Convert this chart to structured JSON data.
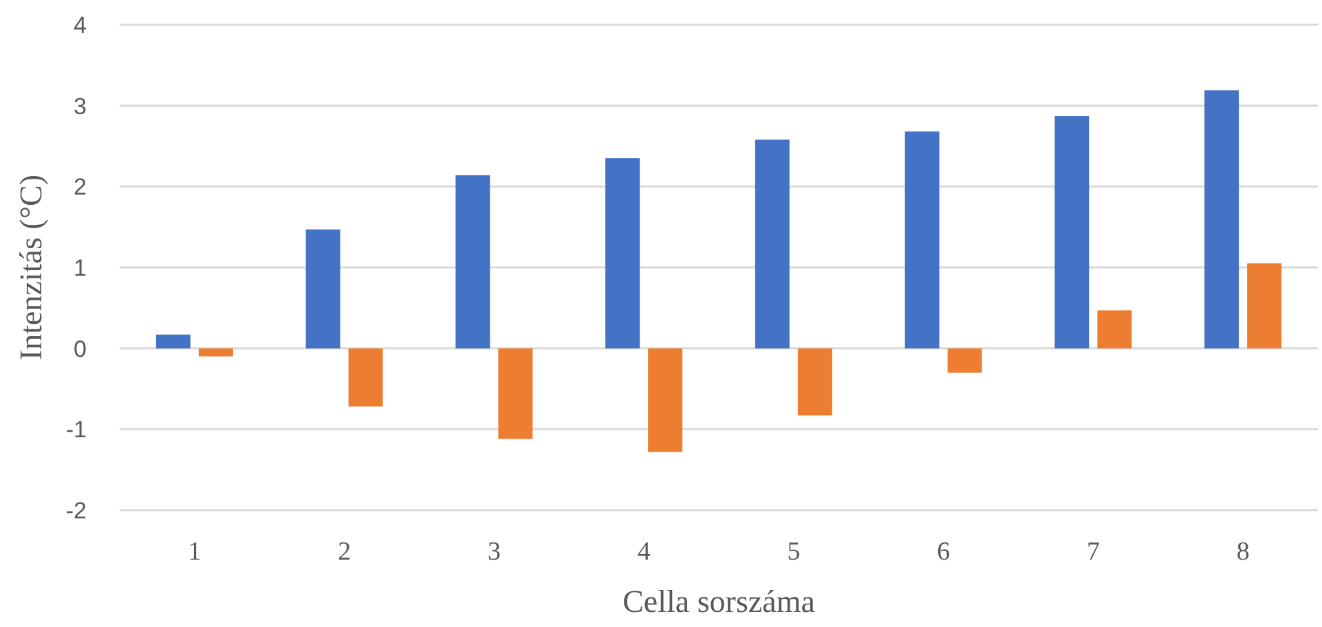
{
  "chart_data": {
    "type": "bar",
    "xlabel": "Cella sorszáma",
    "ylabel": "Intenzitás (°C)",
    "categories": [
      "1",
      "2",
      "3",
      "4",
      "5",
      "6",
      "7",
      "8"
    ],
    "series": [
      {
        "color": "#4472c4",
        "values": [
          0.17,
          1.47,
          2.14,
          2.35,
          2.58,
          2.68,
          2.87,
          3.19
        ]
      },
      {
        "color": "#ed7d31",
        "values": [
          -0.1,
          -0.72,
          -1.12,
          -1.28,
          -0.83,
          -0.3,
          0.47,
          1.05
        ]
      }
    ],
    "ylim": [
      -2,
      4
    ],
    "yticks": [
      -2,
      -1,
      0,
      1,
      2,
      3,
      4
    ],
    "grid": "y"
  }
}
